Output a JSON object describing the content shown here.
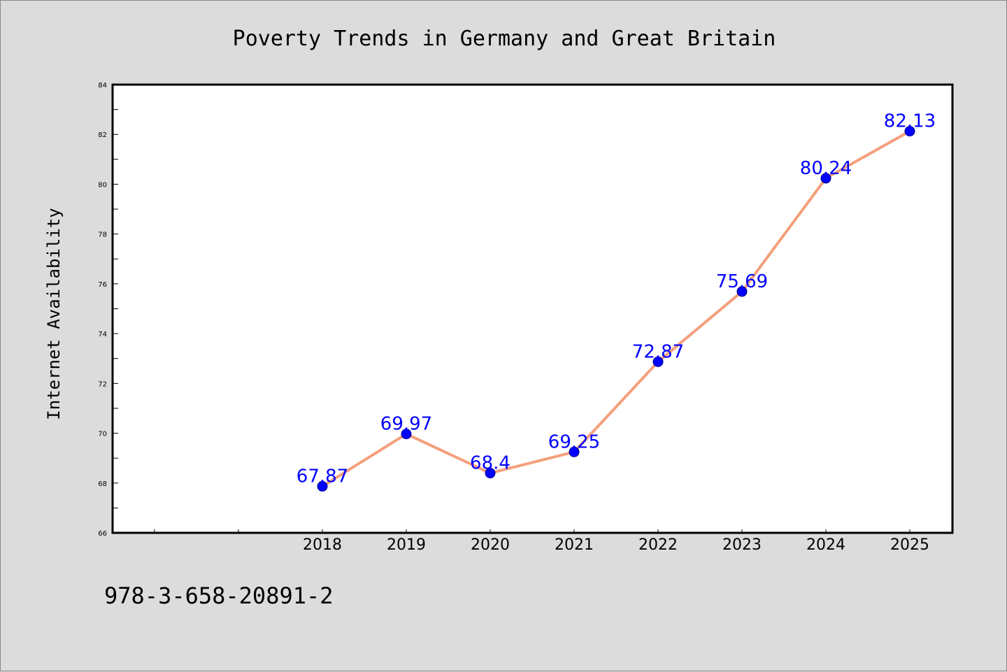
{
  "footer_code": "978-3-658-20891-2",
  "chart_data": {
    "type": "line",
    "title": "Poverty Trends in Germany and Great Britain",
    "xlabel": "",
    "ylabel": "Internet Availability",
    "x": [
      "2018",
      "2019",
      "2020",
      "2021",
      "2022",
      "2023",
      "2024",
      "2025"
    ],
    "values": [
      67.87,
      69.97,
      68.4,
      69.25,
      72.87,
      75.69,
      80.24,
      82.13
    ],
    "data_labels": [
      "67.87",
      "69.97",
      "68.4",
      "69.25",
      "72.87",
      "75.69",
      "80.24",
      "82.13"
    ],
    "ylim": [
      66,
      84
    ],
    "yticks": [
      "66",
      "68",
      "70",
      "72",
      "74",
      "76",
      "78",
      "80",
      "82",
      "84"
    ],
    "grid": false,
    "legend": "none",
    "colors": {
      "line": "#f4a07c",
      "marker": "#0000ff",
      "label": "#0000ff",
      "background": "#dcdcdc",
      "plot_background": "#ffffff"
    }
  }
}
